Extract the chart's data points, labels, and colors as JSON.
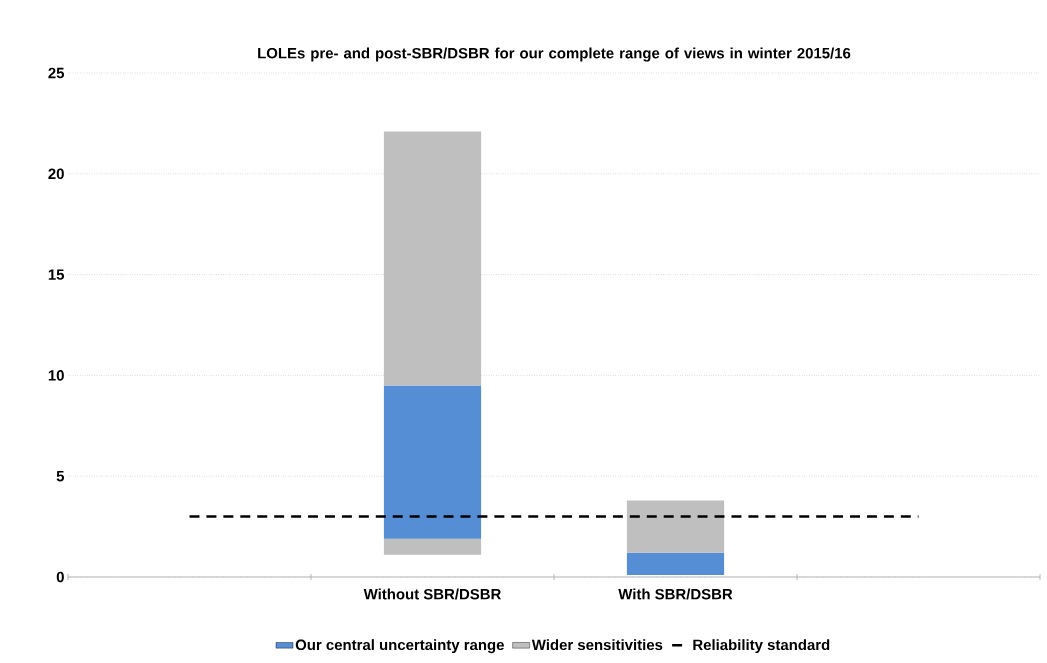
{
  "chart_data": {
    "type": "bar",
    "title": "LOLEs pre- and post-SBR/DSBR for our complete range of views in winter 2015/16",
    "categories": [
      null,
      "Without SBR/DSBR",
      "With SBR/DSBR",
      null
    ],
    "series": [
      {
        "color": "#bfbfbf",
        "base": [
          null,
          1.1,
          null,
          null
        ],
        "values": [
          null,
          0.8,
          null,
          null
        ]
      },
      {
        "name": "Our central uncertainty range",
        "color": "#558ed5",
        "base": [
          null,
          1.9,
          0.1,
          null
        ],
        "values": [
          null,
          7.6,
          1.1,
          null
        ]
      },
      {
        "name": "Wider sensitivities",
        "color": "#bfbfbf",
        "base": [
          null,
          9.5,
          1.2,
          null
        ],
        "values": [
          null,
          12.6,
          2.6,
          null
        ]
      },
      {
        "name": "Reliability standard",
        "type": "line",
        "color": "#000000",
        "line_style": "dashed",
        "marker": "none",
        "values": [
          3,
          3,
          3,
          3
        ]
      }
    ],
    "ylim": [
      0,
      25
    ],
    "yticks": [
      0,
      5,
      10,
      15,
      20,
      25
    ],
    "grid": "y",
    "legend": "bottom"
  }
}
